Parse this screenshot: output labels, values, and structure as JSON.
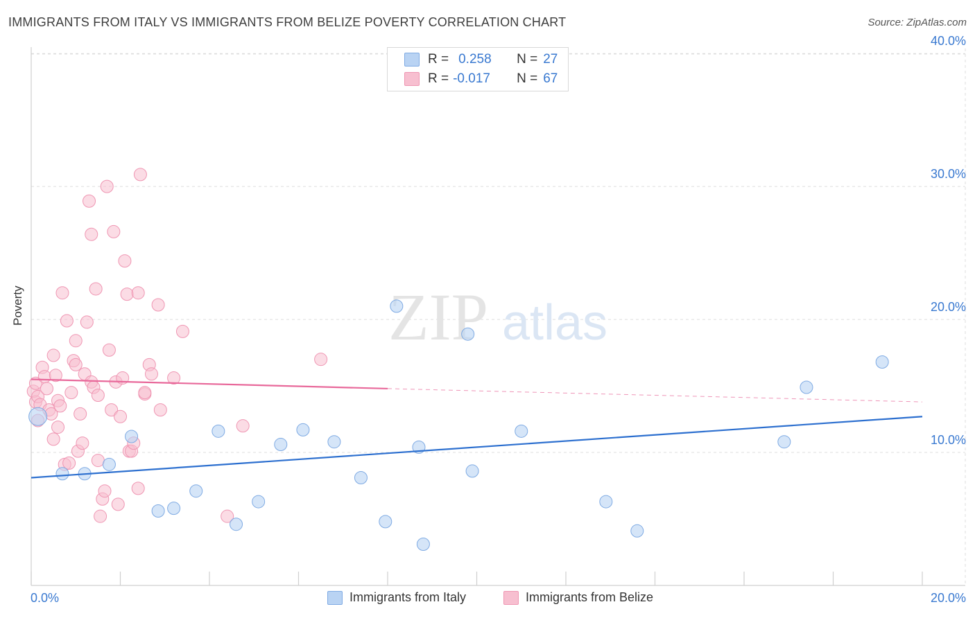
{
  "title": "IMMIGRANTS FROM ITALY VS IMMIGRANTS FROM BELIZE POVERTY CORRELATION CHART",
  "source": "Source: ZipAtlas.com",
  "watermark": {
    "zip": "ZIP",
    "atlas": "atlas"
  },
  "legend": {
    "italy": {
      "r_label": "R =",
      "r_value": "0.258",
      "n_label": "N =",
      "n_value": "27"
    },
    "belize": {
      "r_label": "R =",
      "r_value": "-0.017",
      "n_label": "N =",
      "n_value": "67"
    }
  },
  "colors": {
    "italy_fill": "#b9d3f3",
    "italy_stroke": "#7eaae3",
    "italy_line": "#2c6fcf",
    "belize_fill": "#f7bfd0",
    "belize_stroke": "#ef95b2",
    "belize_line": "#e8689a",
    "axis_text": "#3878d0",
    "grid": "#dddddd"
  },
  "chart_data": {
    "type": "scatter",
    "title": "IMMIGRANTS FROM ITALY VS IMMIGRANTS FROM BELIZE POVERTY CORRELATION CHART",
    "xlabel": "",
    "ylabel": "Poverty",
    "xlim": [
      0,
      20
    ],
    "ylim": [
      0,
      41
    ],
    "x_tick_labels": [
      "0.0%",
      "20.0%"
    ],
    "y_ticks": [
      10,
      20,
      30,
      40
    ],
    "y_tick_labels": [
      "10.0%",
      "20.0%",
      "30.0%",
      "40.0%"
    ],
    "legend_position": "bottom",
    "series": [
      {
        "name": "Immigrants from Italy",
        "points": [
          {
            "x": 0.15,
            "y": 12.7
          },
          {
            "x": 0.7,
            "y": 8.4
          },
          {
            "x": 1.2,
            "y": 8.4
          },
          {
            "x": 1.75,
            "y": 9.1
          },
          {
            "x": 2.25,
            "y": 11.2
          },
          {
            "x": 2.85,
            "y": 5.6
          },
          {
            "x": 3.2,
            "y": 5.8
          },
          {
            "x": 3.7,
            "y": 7.1
          },
          {
            "x": 4.2,
            "y": 11.6
          },
          {
            "x": 4.6,
            "y": 4.6
          },
          {
            "x": 5.1,
            "y": 6.3
          },
          {
            "x": 5.6,
            "y": 10.6
          },
          {
            "x": 6.1,
            "y": 11.7
          },
          {
            "x": 6.8,
            "y": 10.8
          },
          {
            "x": 7.4,
            "y": 8.1
          },
          {
            "x": 7.95,
            "y": 4.8
          },
          {
            "x": 8.2,
            "y": 21.0
          },
          {
            "x": 8.7,
            "y": 10.4
          },
          {
            "x": 8.8,
            "y": 3.1
          },
          {
            "x": 9.8,
            "y": 18.9
          },
          {
            "x": 9.9,
            "y": 8.6
          },
          {
            "x": 11.0,
            "y": 11.6
          },
          {
            "x": 12.9,
            "y": 6.3
          },
          {
            "x": 13.6,
            "y": 4.1
          },
          {
            "x": 16.9,
            "y": 10.8
          },
          {
            "x": 17.4,
            "y": 14.9
          },
          {
            "x": 19.1,
            "y": 16.8
          }
        ],
        "trend": {
          "x": [
            0,
            20
          ],
          "y": [
            8.1,
            12.7
          ]
        }
      },
      {
        "name": "Immigrants from Belize",
        "points": [
          {
            "x": 0.05,
            "y": 14.6
          },
          {
            "x": 0.1,
            "y": 15.2
          },
          {
            "x": 0.1,
            "y": 13.8
          },
          {
            "x": 0.15,
            "y": 14.2
          },
          {
            "x": 0.15,
            "y": 12.4
          },
          {
            "x": 0.2,
            "y": 13.6
          },
          {
            "x": 0.25,
            "y": 16.4
          },
          {
            "x": 0.3,
            "y": 15.7
          },
          {
            "x": 0.35,
            "y": 14.8
          },
          {
            "x": 0.4,
            "y": 13.2
          },
          {
            "x": 0.45,
            "y": 12.9
          },
          {
            "x": 0.5,
            "y": 11.0
          },
          {
            "x": 0.5,
            "y": 17.3
          },
          {
            "x": 0.55,
            "y": 15.8
          },
          {
            "x": 0.6,
            "y": 11.9
          },
          {
            "x": 0.6,
            "y": 13.9
          },
          {
            "x": 0.65,
            "y": 13.5
          },
          {
            "x": 0.7,
            "y": 22.0
          },
          {
            "x": 0.75,
            "y": 9.1
          },
          {
            "x": 0.8,
            "y": 19.9
          },
          {
            "x": 0.85,
            "y": 9.2
          },
          {
            "x": 0.9,
            "y": 14.5
          },
          {
            "x": 0.95,
            "y": 16.9
          },
          {
            "x": 1.0,
            "y": 18.4
          },
          {
            "x": 1.0,
            "y": 16.6
          },
          {
            "x": 1.05,
            "y": 10.1
          },
          {
            "x": 1.1,
            "y": 12.9
          },
          {
            "x": 1.15,
            "y": 10.7
          },
          {
            "x": 1.2,
            "y": 15.9
          },
          {
            "x": 1.25,
            "y": 19.8
          },
          {
            "x": 1.3,
            "y": 28.9
          },
          {
            "x": 1.35,
            "y": 26.4
          },
          {
            "x": 1.35,
            "y": 15.3
          },
          {
            "x": 1.4,
            "y": 14.9
          },
          {
            "x": 1.45,
            "y": 22.3
          },
          {
            "x": 1.5,
            "y": 14.3
          },
          {
            "x": 1.5,
            "y": 9.4
          },
          {
            "x": 1.55,
            "y": 5.2
          },
          {
            "x": 1.6,
            "y": 6.5
          },
          {
            "x": 1.65,
            "y": 7.1
          },
          {
            "x": 1.7,
            "y": 30.0
          },
          {
            "x": 1.75,
            "y": 17.7
          },
          {
            "x": 1.8,
            "y": 13.2
          },
          {
            "x": 1.85,
            "y": 26.6
          },
          {
            "x": 1.9,
            "y": 15.3
          },
          {
            "x": 1.95,
            "y": 6.1
          },
          {
            "x": 2.0,
            "y": 12.7
          },
          {
            "x": 2.05,
            "y": 15.6
          },
          {
            "x": 2.1,
            "y": 24.4
          },
          {
            "x": 2.15,
            "y": 21.9
          },
          {
            "x": 2.2,
            "y": 10.1
          },
          {
            "x": 2.25,
            "y": 10.1
          },
          {
            "x": 2.3,
            "y": 10.7
          },
          {
            "x": 2.4,
            "y": 22.0
          },
          {
            "x": 2.4,
            "y": 7.3
          },
          {
            "x": 2.45,
            "y": 30.9
          },
          {
            "x": 2.55,
            "y": 14.4
          },
          {
            "x": 2.65,
            "y": 16.6
          },
          {
            "x": 2.7,
            "y": 15.9
          },
          {
            "x": 2.85,
            "y": 21.1
          },
          {
            "x": 2.9,
            "y": 13.2
          },
          {
            "x": 3.2,
            "y": 15.6
          },
          {
            "x": 3.4,
            "y": 19.1
          },
          {
            "x": 4.4,
            "y": 5.2
          },
          {
            "x": 4.75,
            "y": 12.0
          },
          {
            "x": 6.5,
            "y": 17.0
          },
          {
            "x": 2.55,
            "y": 14.5
          }
        ],
        "trend": {
          "x": [
            0,
            8
          ],
          "y": [
            15.5,
            14.8
          ]
        },
        "trend_extension": {
          "x": [
            8,
            20
          ],
          "y": [
            14.8,
            13.8
          ]
        }
      }
    ]
  },
  "bottom_legend": {
    "italy": "Immigrants from Italy",
    "belize": "Immigrants from Belize"
  }
}
